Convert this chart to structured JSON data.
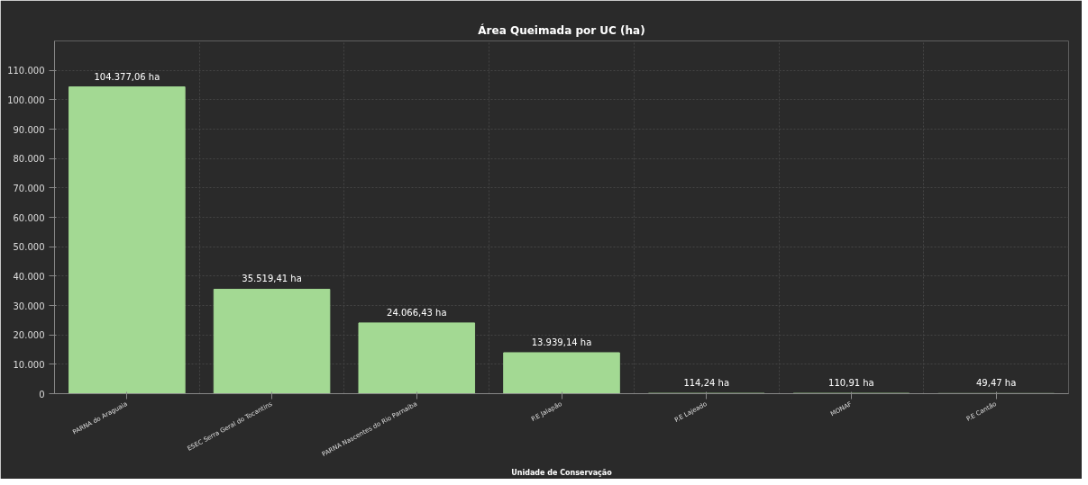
{
  "chart_data": {
    "type": "bar",
    "title": "Área Queimada por UC (ha)",
    "xlabel": "Unidade de Conservação",
    "categories": [
      "PARNA do Araguaia",
      "ESEC Serra Geral do Tocantins",
      "PARNA Nascentes do Rio Parnaíba",
      "P.E Jalapão",
      "P.E Lajeado",
      "MONAF",
      "P.E Cantão"
    ],
    "values": [
      104377.06,
      35519.41,
      24066.43,
      13939.14,
      114.24,
      110.91,
      49.47
    ],
    "value_labels": [
      "104.377,06 ha",
      "35.519,41 ha",
      "24.066,43 ha",
      "13.939,14 ha",
      "114,24 ha",
      "110,91 ha",
      "49,47 ha"
    ],
    "color": "#a3d993",
    "ylim": [
      0,
      120000
    ],
    "yticks": [
      0,
      {
        "value": 10000,
        "label": "10.000"
      },
      {
        "value": 20000,
        "label": "20.000"
      },
      {
        "value": 30000,
        "label": "30.000"
      },
      {
        "value": 40000,
        "label": "40.000"
      },
      {
        "value": 50000,
        "label": "50.000"
      },
      {
        "value": 60000,
        "label": "60.000"
      },
      {
        "value": 70000,
        "label": "70.000"
      },
      {
        "value": 80000,
        "label": "80.000"
      },
      {
        "value": 90000,
        "label": "90.000"
      },
      {
        "value": 100000,
        "label": "100.000"
      },
      {
        "value": 110000,
        "label": "110.000"
      }
    ],
    "grid": true
  }
}
